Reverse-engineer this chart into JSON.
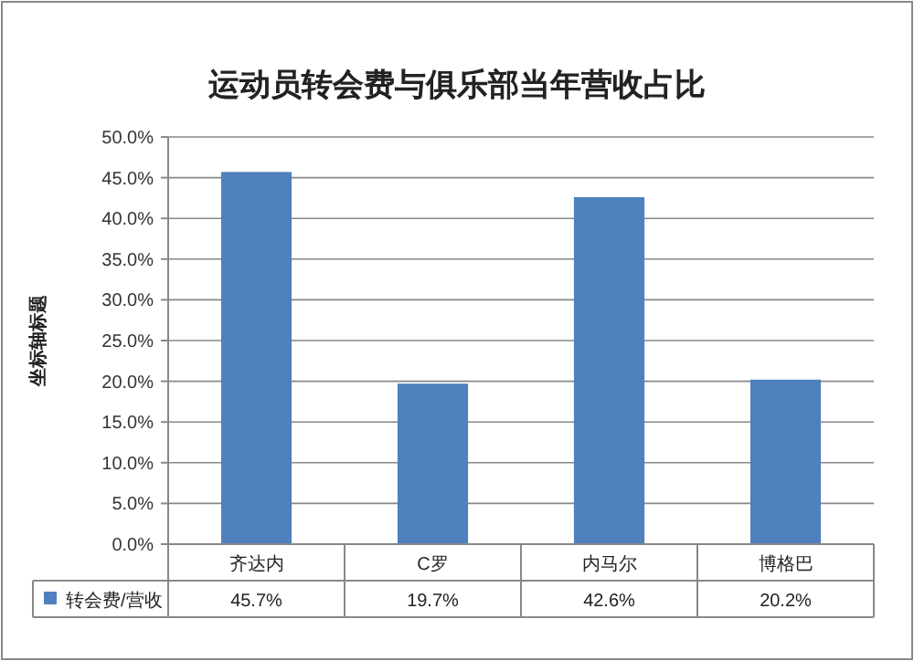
{
  "chart_data": {
    "type": "bar",
    "title": "运动员转会费与俱乐部当年营收占比",
    "ylabel": "坐标轴标题",
    "categories": [
      "齐达内",
      "C罗",
      "内马尔",
      "博格巴"
    ],
    "series": [
      {
        "name": "转会费/营收",
        "color": "#4f81bd",
        "values": [
          45.7,
          19.7,
          42.6,
          20.2
        ],
        "value_labels": [
          "45.7%",
          "19.7%",
          "42.6%",
          "20.2%"
        ]
      }
    ],
    "ylim": [
      0,
      50
    ],
    "yticks": [
      {
        "value": 0,
        "label": "0.0%"
      },
      {
        "value": 5,
        "label": "5.0%"
      },
      {
        "value": 10,
        "label": "10.0%"
      },
      {
        "value": 15,
        "label": "15.0%"
      },
      {
        "value": 20,
        "label": "20.0%"
      },
      {
        "value": 25,
        "label": "25.0%"
      },
      {
        "value": 30,
        "label": "30.0%"
      },
      {
        "value": 35,
        "label": "35.0%"
      },
      {
        "value": 40,
        "label": "40.0%"
      },
      {
        "value": 45,
        "label": "45.0%"
      },
      {
        "value": 50,
        "label": "50.0%"
      }
    ],
    "grid": "y",
    "legend": "bottom"
  }
}
